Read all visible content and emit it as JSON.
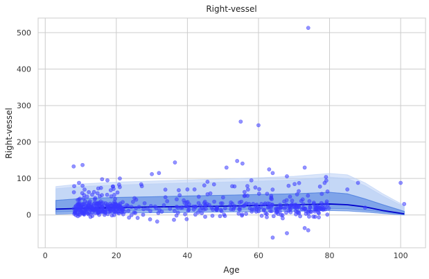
{
  "chart_data": {
    "type": "scatter",
    "title": "Right-vessel",
    "xlabel": "Age",
    "ylabel": "Right-vessel",
    "xlim": [
      -2,
      107
    ],
    "ylim": [
      -90,
      540
    ],
    "xticks": [
      0,
      20,
      40,
      60,
      80,
      100
    ],
    "yticks": [
      0,
      100,
      200,
      300,
      400,
      500
    ],
    "grid": true,
    "colors": {
      "points": "#3a3aff",
      "median_line": "#0000cc",
      "band_dark": "#4d7fe0",
      "band_light": "#b9cff5"
    },
    "bands": {
      "x": [
        3,
        10,
        20,
        30,
        40,
        50,
        60,
        70,
        80,
        85,
        90,
        95,
        101
      ],
      "q05": [
        2,
        4,
        5,
        6,
        7,
        8,
        9,
        10,
        12,
        11,
        8,
        4,
        0
      ],
      "q25": [
        8,
        10,
        12,
        13,
        14,
        15,
        16,
        17,
        18,
        17,
        13,
        8,
        2
      ],
      "q50": [
        16,
        18,
        20,
        22,
        23,
        24,
        26,
        28,
        30,
        28,
        22,
        12,
        3
      ],
      "q75": [
        40,
        45,
        48,
        50,
        52,
        54,
        56,
        58,
        62,
        58,
        44,
        28,
        10
      ],
      "q95": [
        72,
        78,
        82,
        85,
        88,
        90,
        93,
        96,
        104,
        100,
        80,
        52,
        22
      ],
      "q99": [
        78,
        85,
        90,
        93,
        96,
        99,
        102,
        106,
        114,
        110,
        88,
        58,
        26
      ]
    },
    "outliers": [
      {
        "x": 8,
        "y": 133
      },
      {
        "x": 10.5,
        "y": 137
      },
      {
        "x": 9.5,
        "y": 88
      },
      {
        "x": 10.5,
        "y": 80
      },
      {
        "x": 16,
        "y": 98
      },
      {
        "x": 17.5,
        "y": 95
      },
      {
        "x": 21,
        "y": 100
      },
      {
        "x": 19,
        "y": 78
      },
      {
        "x": 27,
        "y": 84
      },
      {
        "x": 30,
        "y": 112
      },
      {
        "x": 32,
        "y": 115
      },
      {
        "x": 36.5,
        "y": 144
      },
      {
        "x": 40,
        "y": 70
      },
      {
        "x": 42,
        "y": 70
      },
      {
        "x": 51,
        "y": 130
      },
      {
        "x": 54,
        "y": 148
      },
      {
        "x": 55,
        "y": 256
      },
      {
        "x": 55.5,
        "y": 141
      },
      {
        "x": 58,
        "y": 95
      },
      {
        "x": 60,
        "y": 246
      },
      {
        "x": 63,
        "y": 125
      },
      {
        "x": 64,
        "y": 115
      },
      {
        "x": 68,
        "y": 106
      },
      {
        "x": 73,
        "y": 130
      },
      {
        "x": 74,
        "y": 513
      },
      {
        "x": 79,
        "y": 104
      },
      {
        "x": 85,
        "y": 70
      },
      {
        "x": 88,
        "y": 88
      },
      {
        "x": 100,
        "y": 88
      },
      {
        "x": 101,
        "y": 30
      },
      {
        "x": 29.5,
        "y": -12
      },
      {
        "x": 31.5,
        "y": -18
      },
      {
        "x": 64,
        "y": -62
      },
      {
        "x": 68,
        "y": -50
      },
      {
        "x": 73,
        "y": -36
      },
      {
        "x": 74,
        "y": -42
      },
      {
        "x": 26,
        "y": -8
      },
      {
        "x": 45,
        "y": -5
      },
      {
        "x": 77,
        "y": 5
      },
      {
        "x": 90,
        "y": 20
      }
    ]
  }
}
